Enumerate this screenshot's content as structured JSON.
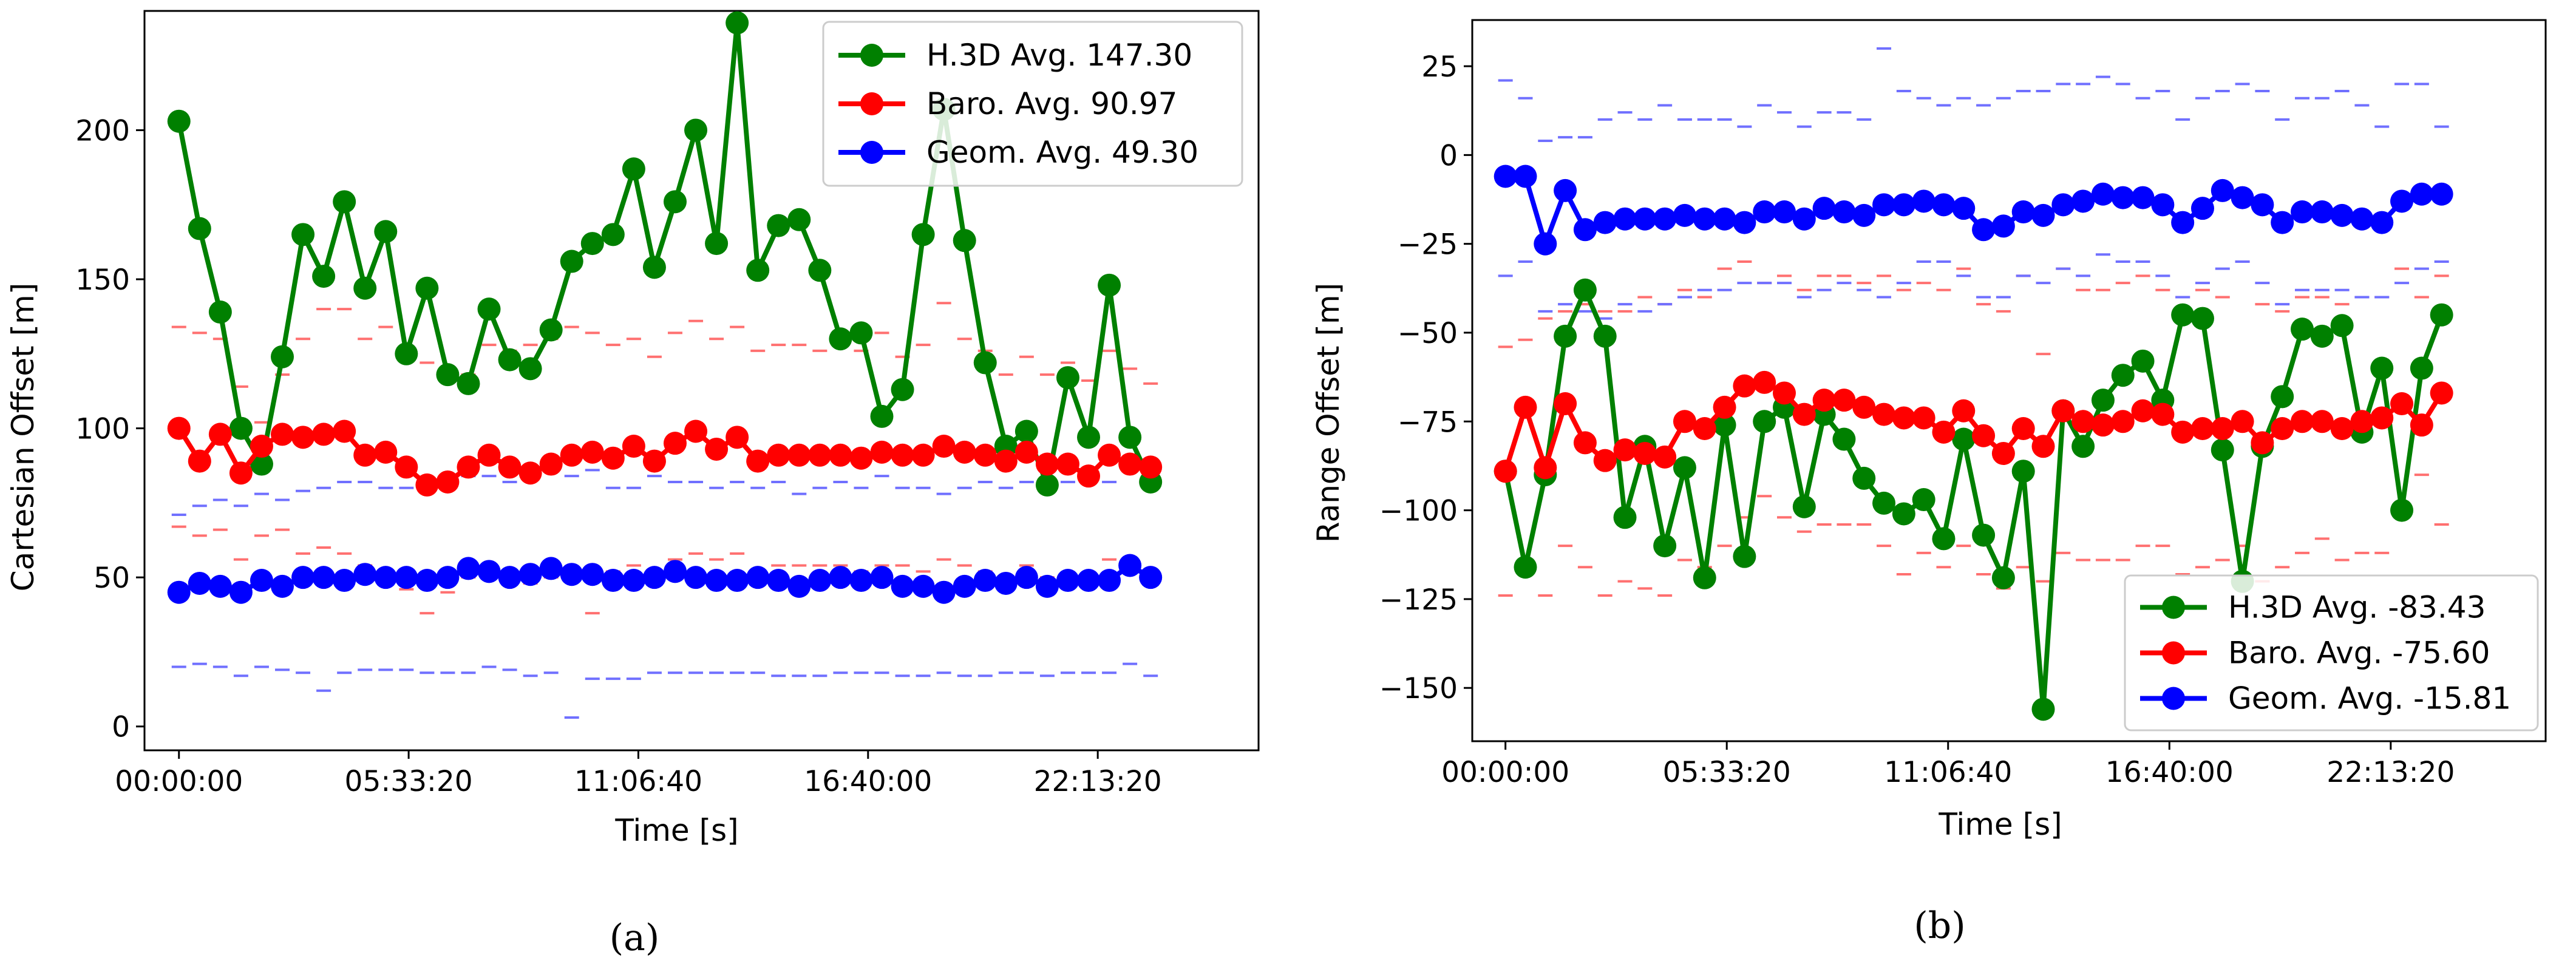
{
  "chart_data": [
    {
      "type": "line",
      "caption": "(a)",
      "xlabel": "Time [s]",
      "ylabel": "Cartesian Offset [m]",
      "xlim": [
        -3000,
        94000
      ],
      "ylim": [
        -8,
        240
      ],
      "xticks": [
        0,
        20000,
        40000,
        60000,
        80000
      ],
      "xtick_labels": [
        "00:00:00",
        "05:33:20",
        "11:06:40",
        "16:40:00",
        "22:13:20"
      ],
      "yticks": [
        0,
        50,
        100,
        150,
        200
      ],
      "ytick_labels": [
        "0",
        "50",
        "100",
        "150",
        "200"
      ],
      "x_start": 0,
      "x_step": 1800,
      "legend_position": "top-right",
      "series": [
        {
          "name": "H.3D Avg. 147.30",
          "color": "#008000",
          "values": [
            203,
            167,
            139,
            100,
            88,
            124,
            165,
            151,
            176,
            147,
            166,
            125,
            147,
            118,
            115,
            140,
            123,
            120,
            133,
            156,
            162,
            165,
            187,
            154,
            176,
            200,
            162,
            236,
            153,
            168,
            170,
            153,
            130,
            132,
            104,
            113,
            165,
            207,
            163,
            122,
            94,
            99,
            81,
            117,
            97,
            148,
            97,
            82
          ]
        },
        {
          "name": "Baro. Avg. 90.97",
          "color": "#ff0000",
          "values": [
            100,
            89,
            98,
            85,
            94,
            98,
            97,
            98,
            99,
            91,
            92,
            87,
            81,
            82,
            87,
            91,
            87,
            85,
            88,
            91,
            92,
            90,
            94,
            89,
            95,
            99,
            93,
            97,
            89,
            91,
            91,
            91,
            91,
            90,
            92,
            91,
            91,
            94,
            92,
            91,
            89,
            92,
            88,
            88,
            84,
            91,
            88,
            87
          ]
        },
        {
          "name": "Geom. Avg. 49.30",
          "color": "#0000ff",
          "values": [
            45,
            48,
            47,
            45,
            49,
            47,
            50,
            50,
            49,
            51,
            50,
            50,
            49,
            50,
            53,
            52,
            50,
            51,
            53,
            51,
            51,
            49,
            49,
            50,
            52,
            50,
            49,
            49,
            50,
            49,
            47,
            49,
            50,
            49,
            50,
            47,
            47,
            45,
            47,
            49,
            48,
            50,
            47,
            49,
            49,
            49,
            54,
            50
          ]
        }
      ],
      "error_markers": [
        {
          "color": "#ff7070",
          "upper": [
            134,
            132,
            130,
            114,
            102,
            118,
            130,
            140,
            140,
            130,
            134,
            124,
            122,
            116,
            118,
            128,
            126,
            128,
            130,
            134,
            132,
            128,
            130,
            124,
            132,
            136,
            130,
            134,
            126,
            128,
            128,
            126,
            128,
            126,
            132,
            124,
            128,
            142,
            130,
            126,
            118,
            124,
            118,
            122,
            116,
            126,
            120,
            115
          ],
          "lower": [
            67,
            64,
            66,
            56,
            64,
            66,
            58,
            60,
            58,
            54,
            52,
            46,
            38,
            45,
            50,
            52,
            50,
            48,
            50,
            50,
            38,
            52,
            54,
            52,
            56,
            58,
            56,
            58,
            52,
            54,
            54,
            54,
            54,
            52,
            54,
            54,
            52,
            56,
            54,
            52,
            50,
            54,
            50,
            50,
            48,
            56,
            54,
            50
          ]
        },
        {
          "color": "#7070ff",
          "upper": [
            71,
            74,
            76,
            74,
            78,
            76,
            79,
            80,
            82,
            82,
            80,
            80,
            80,
            82,
            84,
            84,
            82,
            84,
            86,
            84,
            86,
            80,
            80,
            84,
            82,
            82,
            80,
            82,
            80,
            82,
            78,
            80,
            82,
            80,
            84,
            80,
            80,
            78,
            80,
            82,
            80,
            82,
            80,
            82,
            82,
            82,
            86,
            82
          ],
          "lower": [
            20,
            21,
            20,
            17,
            20,
            19,
            18,
            12,
            18,
            19,
            19,
            19,
            18,
            18,
            18,
            20,
            19,
            17,
            18,
            3,
            16,
            16,
            16,
            18,
            18,
            18,
            18,
            18,
            18,
            17,
            17,
            17,
            18,
            18,
            18,
            17,
            17,
            18,
            17,
            17,
            18,
            18,
            17,
            18,
            18,
            18,
            21,
            17
          ]
        }
      ]
    },
    {
      "type": "line",
      "caption": "(b)",
      "xlabel": "Time [s]",
      "ylabel": "Range Offset [m]",
      "xlim": [
        -3000,
        94000
      ],
      "ylim": [
        -165,
        38
      ],
      "xticks": [
        0,
        20000,
        40000,
        60000,
        80000
      ],
      "xtick_labels": [
        "00:00:00",
        "05:33:20",
        "11:06:40",
        "16:40:00",
        "22:13:20"
      ],
      "yticks": [
        -150,
        -125,
        -100,
        -75,
        -50,
        -25,
        0,
        25
      ],
      "ytick_labels": [
        "−150",
        "−125",
        "−100",
        "−75",
        "−50",
        "−25",
        "0",
        "25"
      ],
      "x_start": 0,
      "x_step": 1800,
      "legend_position": "bottom-right",
      "series": [
        {
          "name": "H.3D Avg. -83.43",
          "color": "#008000",
          "values": [
            -89,
            -116,
            -90,
            -51,
            -38,
            -51,
            -102,
            -82,
            -110,
            -88,
            -119,
            -76,
            -113,
            -75,
            -71,
            -99,
            -73,
            -80,
            -91,
            -98,
            -101,
            -97,
            -108,
            -80,
            -107,
            -119,
            -89,
            -156,
            -72,
            -82,
            -69,
            -62,
            -58,
            -69,
            -45,
            -46,
            -83,
            -120,
            -82,
            -68,
            -49,
            -51,
            -48,
            -78,
            -60,
            -100,
            -60,
            -45
          ]
        },
        {
          "name": "Baro. Avg. -75.60",
          "color": "#ff0000",
          "values": [
            -89,
            -71,
            -88,
            -70,
            -81,
            -86,
            -83,
            -84,
            -85,
            -75,
            -77,
            -71,
            -65,
            -64,
            -67,
            -73,
            -69,
            -69,
            -71,
            -73,
            -74,
            -74,
            -78,
            -72,
            -79,
            -84,
            -77,
            -82,
            -72,
            -75,
            -76,
            -75,
            -72,
            -73,
            -78,
            -77,
            -77,
            -75,
            -81,
            -77,
            -75,
            -75,
            -77,
            -75,
            -74,
            -70,
            -76,
            -67
          ]
        },
        {
          "name": "Geom. Avg. -15.81",
          "color": "#0000ff",
          "values": [
            -6,
            -6,
            -25,
            -10,
            -21,
            -19,
            -18,
            -18,
            -18,
            -17,
            -18,
            -18,
            -19,
            -16,
            -16,
            -18,
            -15,
            -16,
            -17,
            -14,
            -14,
            -13,
            -14,
            -15,
            -21,
            -20,
            -16,
            -17,
            -14,
            -13,
            -11,
            -12,
            -12,
            -14,
            -19,
            -15,
            -10,
            -12,
            -14,
            -19,
            -16,
            -16,
            -17,
            -18,
            -19,
            -13,
            -11,
            -11
          ]
        }
      ],
      "error_markers": [
        {
          "color": "#ff7070",
          "upper": [
            -54,
            -52,
            -46,
            -44,
            -42,
            -44,
            -44,
            -40,
            -42,
            -38,
            -40,
            -32,
            -30,
            -36,
            -34,
            -38,
            -34,
            -34,
            -36,
            -34,
            -38,
            -36,
            -38,
            -32,
            -42,
            -44,
            -34,
            -56,
            -32,
            -38,
            -38,
            -36,
            -34,
            -38,
            -40,
            -38,
            -40,
            -30,
            -42,
            -44,
            -40,
            -40,
            -42,
            -40,
            -40,
            -32,
            -40,
            -34
          ],
          "lower": [
            -124,
            -118,
            -124,
            -110,
            -116,
            -124,
            -120,
            -122,
            -124,
            -114,
            -116,
            -110,
            -102,
            -96,
            -102,
            -106,
            -104,
            -104,
            -104,
            -110,
            -118,
            -112,
            -116,
            -110,
            -118,
            -122,
            -116,
            -120,
            -112,
            -114,
            -114,
            -114,
            -110,
            -110,
            -118,
            -116,
            -114,
            -110,
            -120,
            -116,
            -112,
            -108,
            -114,
            -112,
            -112,
            -102,
            -90,
            -104
          ]
        },
        {
          "color": "#7070ff",
          "upper": [
            21,
            16,
            4,
            5,
            5,
            10,
            12,
            10,
            14,
            10,
            10,
            10,
            8,
            14,
            12,
            8,
            12,
            12,
            10,
            30,
            18,
            16,
            14,
            16,
            14,
            16,
            18,
            18,
            20,
            20,
            22,
            20,
            16,
            18,
            10,
            16,
            18,
            20,
            18,
            10,
            16,
            16,
            18,
            14,
            8,
            20,
            20,
            8
          ],
          "lower": [
            -34,
            -30,
            -44,
            -42,
            -44,
            -46,
            -42,
            -44,
            -42,
            -40,
            -38,
            -38,
            -36,
            -36,
            -36,
            -40,
            -38,
            -36,
            -38,
            -40,
            -36,
            -30,
            -30,
            -34,
            -40,
            -40,
            -34,
            -36,
            -32,
            -34,
            -28,
            -30,
            -30,
            -34,
            -40,
            -36,
            -32,
            -30,
            -36,
            -42,
            -38,
            -38,
            -38,
            -40,
            -40,
            -36,
            -32,
            -30
          ]
        }
      ]
    }
  ]
}
